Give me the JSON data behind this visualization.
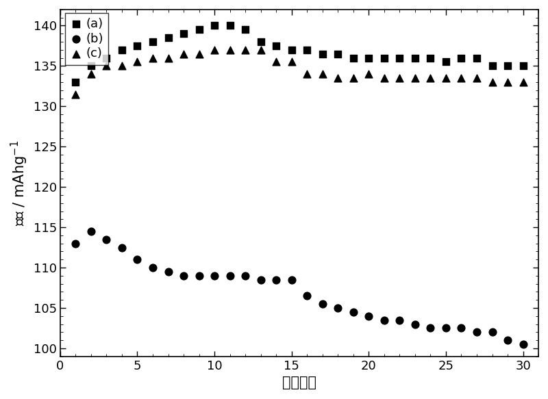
{
  "series_a": {
    "x": [
      1,
      2,
      3,
      4,
      5,
      6,
      7,
      8,
      9,
      10,
      11,
      12,
      13,
      14,
      15,
      16,
      17,
      18,
      19,
      20,
      21,
      22,
      23,
      24,
      25,
      26,
      27,
      28,
      29,
      30
    ],
    "y": [
      133,
      135,
      136,
      137,
      137.5,
      138,
      138.5,
      139,
      139.5,
      140,
      140,
      139.5,
      138,
      137.5,
      137,
      137,
      136.5,
      136.5,
      136,
      136,
      136,
      136,
      136,
      136,
      135.5,
      136,
      136,
      135,
      135,
      135
    ],
    "label": "(a)",
    "marker": "s"
  },
  "series_b": {
    "x": [
      1,
      2,
      3,
      4,
      5,
      6,
      7,
      8,
      9,
      10,
      11,
      12,
      13,
      14,
      15,
      16,
      17,
      18,
      19,
      20,
      21,
      22,
      23,
      24,
      25,
      26,
      27,
      28,
      29,
      30
    ],
    "y": [
      113,
      114.5,
      113.5,
      112.5,
      111,
      110,
      109.5,
      109,
      109,
      109,
      109,
      109,
      108.5,
      108.5,
      108.5,
      106.5,
      105.5,
      105,
      104.5,
      104,
      103.5,
      103.5,
      103,
      102.5,
      102.5,
      102.5,
      102,
      102,
      101,
      100.5
    ],
    "label": "(b)",
    "marker": "o"
  },
  "series_c": {
    "x": [
      1,
      2,
      3,
      4,
      5,
      6,
      7,
      8,
      9,
      10,
      11,
      12,
      13,
      14,
      15,
      16,
      17,
      18,
      19,
      20,
      21,
      22,
      23,
      24,
      25,
      26,
      27,
      28,
      29,
      30
    ],
    "y": [
      131.5,
      134,
      135,
      135,
      135.5,
      136,
      136,
      136.5,
      136.5,
      137,
      137,
      137,
      137,
      135.5,
      135.5,
      134,
      134,
      133.5,
      133.5,
      134,
      133.5,
      133.5,
      133.5,
      133.5,
      133.5,
      133.5,
      133.5,
      133,
      133,
      133
    ],
    "label": "(c)",
    "marker": "^"
  },
  "xlabel": "循环次数",
  "ylabel": "容量 / mAhg-1",
  "xlim": [
    0.5,
    31
  ],
  "ylim": [
    99,
    142
  ],
  "xticks": [
    0,
    5,
    10,
    15,
    20,
    25,
    30
  ],
  "yticks": [
    100,
    105,
    110,
    115,
    120,
    125,
    130,
    135,
    140
  ],
  "background_color": "#ffffff",
  "axis_fontsize": 15,
  "tick_fontsize": 13,
  "marker_size": 60,
  "legend_fontsize": 13
}
